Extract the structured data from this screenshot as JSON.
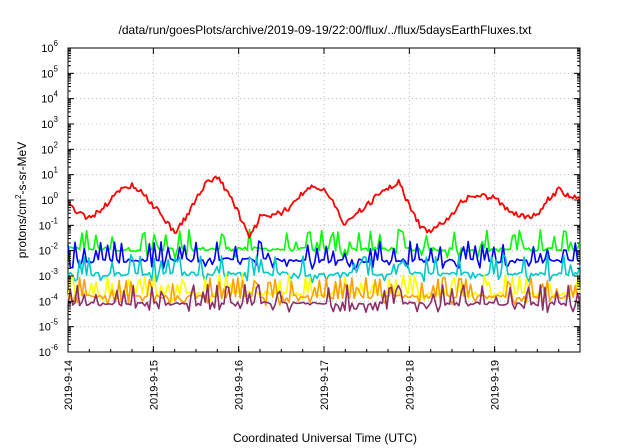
{
  "chart_data": {
    "type": "line",
    "title": "/data/run/goesPlots/archive/2019-09-19/22:00/flux/../flux/5daysEarthFluxes.txt",
    "xlabel": "Coordinated Universal Time (UTC)",
    "ylabel": "protons/cm²-s-sr-MeV",
    "ylabel_parts": {
      "before": "protons/cm",
      "sup": "2",
      "after": "-s-sr-MeV"
    },
    "yscale": "log",
    "ylim_exponent": [
      -6,
      6
    ],
    "y_ticks": [
      {
        "base": "10",
        "exp": "-6"
      },
      {
        "base": "10",
        "exp": "-5"
      },
      {
        "base": "10",
        "exp": "-4"
      },
      {
        "base": "10",
        "exp": "-3"
      },
      {
        "base": "10",
        "exp": "-2"
      },
      {
        "base": "10",
        "exp": "-1"
      },
      {
        "base": "10",
        "exp": "0"
      },
      {
        "base": "10",
        "exp": "1"
      },
      {
        "base": "10",
        "exp": "2"
      },
      {
        "base": "10",
        "exp": "3"
      },
      {
        "base": "10",
        "exp": "4"
      },
      {
        "base": "10",
        "exp": "5"
      },
      {
        "base": "10",
        "exp": "6"
      }
    ],
    "xlim": [
      "2019-09-14",
      "2019-09-20T00:00"
    ],
    "x_ticks": [
      "2019-9-14",
      "2019-9-15",
      "2019-9-16",
      "2019-9-17",
      "2019-9-18",
      "2019-9-19"
    ],
    "x_tick_dates": [
      "2019-09-14",
      "2019-09-15",
      "2019-09-16",
      "2019-09-17",
      "2019-09-18",
      "2019-09-19"
    ],
    "grid": true,
    "legend": "none",
    "series": [
      {
        "color": "#ff0000",
        "x": [
          "2019-09-14T00:00",
          "2019-09-14T03:00",
          "2019-09-14T06:00",
          "2019-09-14T09:00",
          "2019-09-14T12:00",
          "2019-09-14T15:00",
          "2019-09-14T18:00",
          "2019-09-14T21:00",
          "2019-09-15T00:00",
          "2019-09-15T03:00",
          "2019-09-15T06:00",
          "2019-09-15T09:00",
          "2019-09-15T12:00",
          "2019-09-15T15:00",
          "2019-09-15T18:00",
          "2019-09-15T21:00",
          "2019-09-16T00:00",
          "2019-09-16T03:00",
          "2019-09-16T06:00",
          "2019-09-16T09:00",
          "2019-09-16T12:00",
          "2019-09-16T15:00",
          "2019-09-16T18:00",
          "2019-09-16T21:00",
          "2019-09-17T00:00",
          "2019-09-17T03:00",
          "2019-09-17T06:00",
          "2019-09-17T09:00",
          "2019-09-17T12:00",
          "2019-09-17T15:00",
          "2019-09-17T18:00",
          "2019-09-17T21:00",
          "2019-09-18T00:00",
          "2019-09-18T03:00",
          "2019-09-18T06:00",
          "2019-09-18T09:00",
          "2019-09-18T12:00",
          "2019-09-18T15:00",
          "2019-09-18T18:00",
          "2019-09-18T21:00",
          "2019-09-19T00:00",
          "2019-09-19T03:00",
          "2019-09-19T06:00",
          "2019-09-19T09:00",
          "2019-09-19T12:00",
          "2019-09-19T15:00",
          "2019-09-19T18:00",
          "2019-09-19T21:00",
          "2019-09-19T23:59"
        ],
        "values": [
          0.7,
          0.3,
          0.2,
          0.4,
          1.0,
          2.5,
          4.0,
          2.0,
          0.6,
          0.2,
          0.05,
          0.2,
          1.0,
          5.0,
          8.0,
          2.0,
          0.3,
          0.03,
          0.2,
          0.25,
          0.3,
          0.6,
          2.0,
          4.0,
          2.5,
          0.6,
          0.1,
          0.3,
          0.6,
          1.5,
          3.0,
          5.0,
          0.6,
          0.1,
          0.05,
          0.12,
          0.3,
          0.9,
          1.5,
          1.4,
          1.2,
          0.5,
          0.3,
          0.2,
          0.25,
          1.0,
          2.5,
          1.5,
          1.0
        ]
      },
      {
        "color": "#00ff00",
        "x": [
          "2019-09-14",
          "2019-09-15",
          "2019-09-16",
          "2019-09-17",
          "2019-09-18",
          "2019-09-19",
          "2019-09-19T23:59"
        ],
        "values": [
          0.012,
          0.011,
          0.012,
          0.011,
          0.012,
          0.011,
          0.012
        ],
        "spiky": true
      },
      {
        "color": "#0000ff",
        "x": [
          "2019-09-14",
          "2019-09-15",
          "2019-09-16",
          "2019-09-17",
          "2019-09-18",
          "2019-09-19",
          "2019-09-19T23:59"
        ],
        "values": [
          0.004,
          0.004,
          0.0045,
          0.004,
          0.0042,
          0.004,
          0.004
        ],
        "spiky": true
      },
      {
        "color": "#00c8c8",
        "x": [
          "2019-09-14",
          "2019-09-15",
          "2019-09-16",
          "2019-09-17",
          "2019-09-18",
          "2019-09-19",
          "2019-09-19T23:59"
        ],
        "values": [
          0.0012,
          0.0012,
          0.0013,
          0.0012,
          0.0012,
          0.0012,
          0.0012
        ],
        "spiky": true
      },
      {
        "color": "#ffff00",
        "x": [
          "2019-09-14",
          "2019-09-15",
          "2019-09-16",
          "2019-09-17",
          "2019-09-18",
          "2019-09-19",
          "2019-09-19T23:59"
        ],
        "values": [
          0.00022,
          0.0002,
          0.00022,
          0.0002,
          0.0002,
          0.0002,
          0.0002
        ],
        "spiky": true
      },
      {
        "color": "#ff9f00",
        "x": [
          "2019-09-14",
          "2019-09-15",
          "2019-09-16",
          "2019-09-17",
          "2019-09-18",
          "2019-09-19",
          "2019-09-19T23:59"
        ],
        "values": [
          0.00015,
          0.00015,
          0.00015,
          0.00015,
          0.00015,
          0.00015,
          0.00015
        ],
        "spiky": true
      },
      {
        "color": "#8b2f6b",
        "x": [
          "2019-09-14",
          "2019-09-15",
          "2019-09-16",
          "2019-09-17",
          "2019-09-18",
          "2019-09-19",
          "2019-09-19T23:59"
        ],
        "values": [
          8e-05,
          8e-05,
          8e-05,
          8e-05,
          8e-05,
          8e-05,
          8e-05
        ],
        "spiky": true
      }
    ]
  }
}
